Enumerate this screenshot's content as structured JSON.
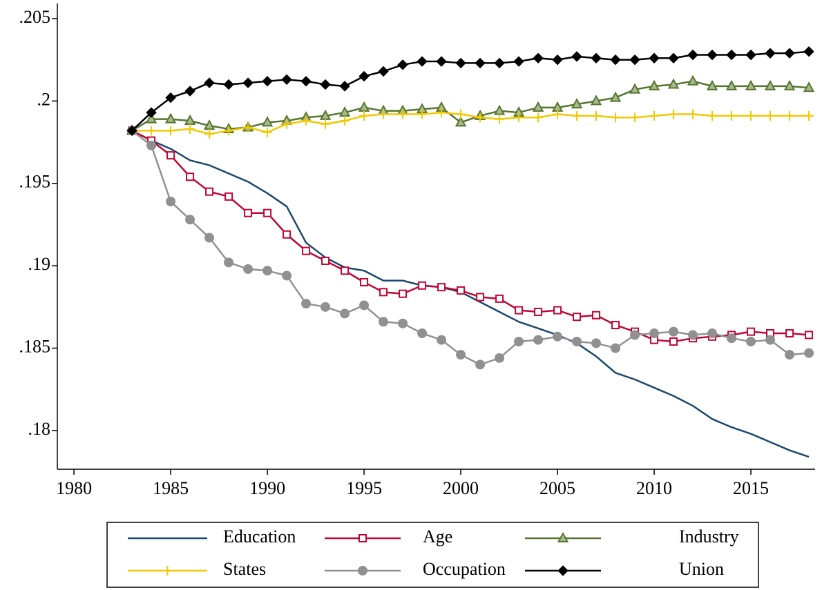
{
  "chart_data": {
    "type": "line",
    "x": [
      1983,
      1984,
      1985,
      1986,
      1987,
      1988,
      1989,
      1990,
      1991,
      1992,
      1993,
      1994,
      1995,
      1996,
      1997,
      1998,
      1999,
      2000,
      2001,
      2002,
      2003,
      2004,
      2005,
      2006,
      2007,
      2008,
      2009,
      2010,
      2011,
      2012,
      2013,
      2014,
      2015,
      2016,
      2017,
      2018
    ],
    "series": [
      {
        "name": "Education",
        "color": "#1a476f",
        "marker": "none",
        "values": [
          0.1982,
          0.1976,
          0.1971,
          0.1964,
          0.1961,
          0.1956,
          0.1951,
          0.1944,
          0.1936,
          0.1914,
          0.1905,
          0.1899,
          0.1897,
          0.1891,
          0.1891,
          0.1888,
          0.1887,
          0.1884,
          0.1878,
          0.1872,
          0.1866,
          0.1862,
          0.1858,
          0.1853,
          0.1845,
          0.1835,
          0.1831,
          0.1826,
          0.1821,
          0.1815,
          0.1807,
          0.1802,
          0.1798,
          0.1793,
          0.1788,
          0.1784
        ]
      },
      {
        "name": "Age",
        "color": "#c10534",
        "marker": "square",
        "values": [
          0.1982,
          0.1976,
          0.1967,
          0.1954,
          0.1945,
          0.1942,
          0.1932,
          0.1932,
          0.1919,
          0.1909,
          0.1903,
          0.1897,
          0.189,
          0.1884,
          0.1883,
          0.1888,
          0.1887,
          0.1885,
          0.1881,
          0.188,
          0.1873,
          0.1872,
          0.1873,
          0.1869,
          0.187,
          0.1864,
          0.186,
          0.1855,
          0.1854,
          0.1856,
          0.1857,
          0.1858,
          0.186,
          0.1859,
          0.1859,
          0.1858
        ]
      },
      {
        "name": "Industry",
        "color": "#55752f",
        "marker": "triangle",
        "values": [
          0.1982,
          0.1989,
          0.1989,
          0.1988,
          0.1985,
          0.1983,
          0.1984,
          0.1987,
          0.1988,
          0.199,
          0.1991,
          0.1993,
          0.1996,
          0.1994,
          0.1994,
          0.1995,
          0.1996,
          0.1987,
          0.1991,
          0.1994,
          0.1993,
          0.1996,
          0.1996,
          0.1998,
          0.2,
          0.2002,
          0.2007,
          0.2009,
          0.201,
          0.2012,
          0.2009,
          0.2009,
          0.2009,
          0.2009,
          0.2009,
          0.2008
        ]
      },
      {
        "name": "States",
        "color": "#f2c800",
        "marker": "plus",
        "values": [
          0.1982,
          0.1982,
          0.1982,
          0.1983,
          0.198,
          0.1982,
          0.1984,
          0.1981,
          0.1986,
          0.1988,
          0.1986,
          0.1988,
          0.1991,
          0.1992,
          0.1992,
          0.1992,
          0.1993,
          0.1992,
          0.199,
          0.1989,
          0.199,
          0.199,
          0.1992,
          0.1991,
          0.1991,
          0.199,
          0.199,
          0.1991,
          0.1992,
          0.1992,
          0.1991,
          0.1991,
          0.1991,
          0.1991,
          0.1991,
          0.1991
        ]
      },
      {
        "name": "Occupation",
        "color": "#909090",
        "marker": "circle",
        "values": [
          0.1982,
          0.1973,
          0.1939,
          0.1928,
          0.1917,
          0.1902,
          0.1898,
          0.1897,
          0.1894,
          0.1877,
          0.1875,
          0.1871,
          0.1876,
          0.1866,
          0.1865,
          0.1859,
          0.1855,
          0.1846,
          0.184,
          0.1844,
          0.1854,
          0.1855,
          0.1857,
          0.1854,
          0.1853,
          0.185,
          0.1858,
          0.1859,
          0.186,
          0.1858,
          0.1859,
          0.1856,
          0.1854,
          0.1855,
          0.1846,
          0.1847
        ]
      },
      {
        "name": "Union",
        "color": "#000000",
        "marker": "diamond",
        "values": [
          0.1982,
          0.1993,
          0.2002,
          0.2006,
          0.2011,
          0.201,
          0.2011,
          0.2012,
          0.2013,
          0.2012,
          0.201,
          0.2009,
          0.2015,
          0.2018,
          0.2022,
          0.2024,
          0.2024,
          0.2023,
          0.2023,
          0.2023,
          0.2024,
          0.2026,
          0.2025,
          0.2027,
          0.2026,
          0.2025,
          0.2025,
          0.2026,
          0.2026,
          0.2028,
          0.2028,
          0.2028,
          0.2028,
          0.2029,
          0.2029,
          0.203
        ]
      }
    ],
    "xlim": [
      1979.14,
      2018.32
    ],
    "xticks": [
      1980,
      1985,
      1990,
      1995,
      2000,
      2005,
      2010,
      2015
    ],
    "ylim": [
      0.17765,
      0.20592
    ],
    "yticks": [
      {
        "value": 0.18,
        "label": ".18"
      },
      {
        "value": 0.185,
        "label": ".185"
      },
      {
        "value": 0.19,
        "label": ".19"
      },
      {
        "value": 0.195,
        "label": ".195"
      },
      {
        "value": 0.2,
        "label": ".2"
      },
      {
        "value": 0.205,
        "label": ".205"
      }
    ],
    "grid": false,
    "legend": "bottom"
  }
}
